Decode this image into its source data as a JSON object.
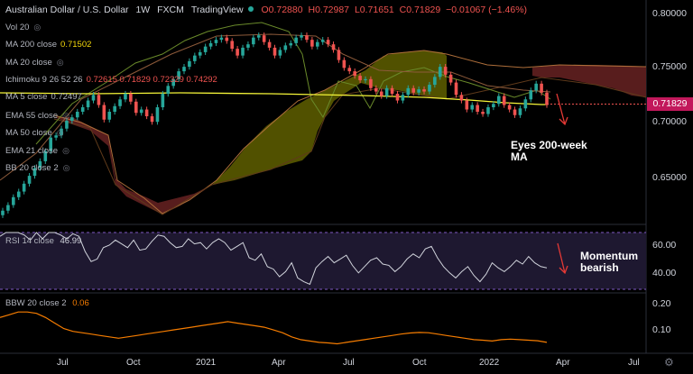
{
  "header": {
    "symbol": "Australian Dollar / U.S. Dollar",
    "interval": "1W",
    "source": "FXCM",
    "platform": "TradingView",
    "ohlc": {
      "o": "O0.72880",
      "h": "H0.72987",
      "l": "L0.71651",
      "c": "C0.71829"
    },
    "change": "−0.01067 (−1.46%)"
  },
  "indicators": [
    {
      "label": "Vol 20",
      "value": "",
      "color": "#b2b5be"
    },
    {
      "label": "MA 200 close",
      "value": "0.71502",
      "color": "#f5d90a"
    },
    {
      "label": "MA 20 close",
      "value": "",
      "color": "#b2b5be"
    },
    {
      "label": "Ichimoku 9 26 52 26",
      "value": "0.72615  0.71829  0.72329  0.74292",
      "color": "#ef5350"
    },
    {
      "label": "MA 5 close",
      "value": "0.72497",
      "color": "#b2b5be"
    },
    {
      "label": "EMA 55 close",
      "value": "",
      "color": "#b2b5be"
    },
    {
      "label": "MA 50 close",
      "value": "",
      "color": "#b2b5be"
    },
    {
      "label": "EMA 21 close",
      "value": "",
      "color": "#b2b5be"
    },
    {
      "label": "BB 20 close 2",
      "value": "",
      "color": "#b2b5be"
    }
  ],
  "rsi": {
    "label": "RSI 14 close",
    "value": "46.99"
  },
  "bbw": {
    "label": "BBW 20 close 2",
    "value": "0.06"
  },
  "annotations": {
    "main": "Eyes 200-week MA",
    "rsi": "Momentum bearish"
  },
  "last_price": "0.71829",
  "colors": {
    "up": "#26a69a",
    "down": "#ef5350",
    "cloud_bull": "#6b6b00",
    "cloud_bear": "#5d1f1f",
    "ma200": "#f5f538",
    "arrow": "#e53935",
    "bbw": "#f57c00",
    "rsi_line": "#d1d4dc"
  },
  "chart_data": [
    {
      "type": "candlestick",
      "title": "Australian Dollar / U.S. Dollar 1W FXCM",
      "x_ticks": [
        "Jul",
        "Oct",
        "2021",
        "Apr",
        "Jul",
        "Oct",
        "2022",
        "Apr",
        "Jul"
      ],
      "y_ticks": [
        "0.80000",
        "0.75000",
        "0.70000",
        "0.65000"
      ],
      "ylim": [
        0.615,
        0.805
      ],
      "closes": [
        0.624,
        0.629,
        0.636,
        0.641,
        0.648,
        0.655,
        0.662,
        0.668,
        0.677,
        0.689,
        0.691,
        0.697,
        0.704,
        0.707,
        0.712,
        0.716,
        0.722,
        0.727,
        0.718,
        0.705,
        0.712,
        0.717,
        0.723,
        0.728,
        0.721,
        0.711,
        0.714,
        0.708,
        0.703,
        0.716,
        0.728,
        0.735,
        0.741,
        0.748,
        0.752,
        0.757,
        0.762,
        0.765,
        0.77,
        0.773,
        0.776,
        0.778,
        0.775,
        0.768,
        0.762,
        0.769,
        0.772,
        0.778,
        0.78,
        0.774,
        0.769,
        0.762,
        0.767,
        0.771,
        0.773,
        0.778,
        0.78,
        0.776,
        0.77,
        0.774,
        0.776,
        0.772,
        0.767,
        0.758,
        0.751,
        0.748,
        0.744,
        0.74,
        0.741,
        0.733,
        0.73,
        0.726,
        0.733,
        0.728,
        0.722,
        0.727,
        0.733,
        0.729,
        0.732,
        0.73,
        0.736,
        0.743,
        0.752,
        0.745,
        0.738,
        0.727,
        0.722,
        0.714,
        0.718,
        0.712,
        0.71,
        0.716,
        0.719,
        0.726,
        0.718,
        0.714,
        0.709,
        0.715,
        0.723,
        0.731,
        0.737,
        0.729,
        0.718
      ]
    },
    {
      "type": "line",
      "title": "RSI 14 close",
      "y_ticks": [
        "60.00",
        "40.00"
      ],
      "values": [
        72,
        75,
        78,
        80,
        73,
        69,
        76,
        70,
        78,
        75,
        73,
        70,
        74,
        72,
        60,
        52,
        54,
        63,
        65,
        69,
        66,
        63,
        69,
        61,
        62,
        68,
        73,
        72,
        67,
        63,
        64,
        70,
        66,
        67,
        62,
        67,
        70,
        67,
        61,
        64,
        67,
        55,
        53,
        58,
        48,
        46,
        40,
        44,
        51,
        39,
        36,
        34,
        47,
        52,
        56,
        51,
        54,
        57,
        49,
        43,
        48,
        53,
        55,
        50,
        49,
        44,
        48,
        54,
        58,
        55,
        62,
        64,
        55,
        48,
        43,
        39,
        44,
        48,
        41,
        36,
        42,
        51,
        47,
        44,
        48,
        53,
        50,
        56,
        51,
        48,
        47
      ]
    },
    {
      "type": "line",
      "title": "BBW 20 close 2",
      "y_ticks": [
        "0.20",
        "0.10"
      ],
      "values": [
        0.15,
        0.16,
        0.17,
        0.17,
        0.165,
        0.15,
        0.13,
        0.11,
        0.1,
        0.095,
        0.09,
        0.085,
        0.08,
        0.075,
        0.08,
        0.085,
        0.09,
        0.095,
        0.1,
        0.105,
        0.11,
        0.115,
        0.12,
        0.125,
        0.13,
        0.135,
        0.13,
        0.125,
        0.12,
        0.115,
        0.105,
        0.095,
        0.08,
        0.07,
        0.065,
        0.06,
        0.058,
        0.055,
        0.06,
        0.065,
        0.07,
        0.075,
        0.08,
        0.085,
        0.09,
        0.094,
        0.096,
        0.095,
        0.09,
        0.085,
        0.08,
        0.075,
        0.07,
        0.068,
        0.065,
        0.07,
        0.072,
        0.07,
        0.068,
        0.066,
        0.06
      ]
    }
  ]
}
